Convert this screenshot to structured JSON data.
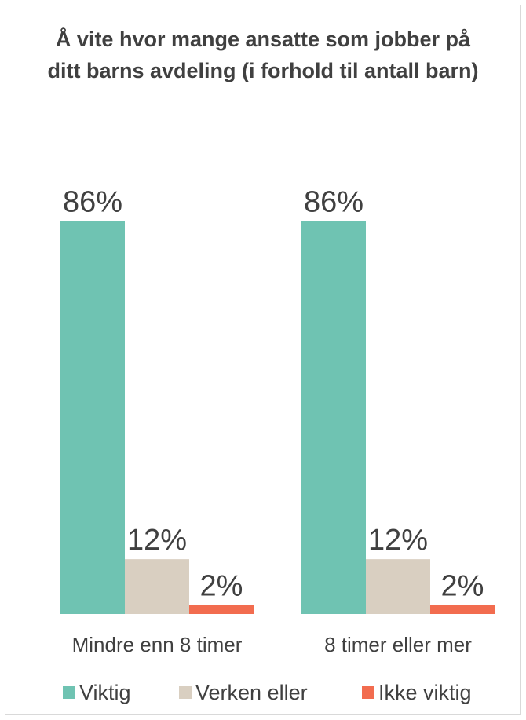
{
  "chart_data": {
    "type": "bar",
    "title": "Å vite hvor mange ansatte som jobber på ditt barns avdeling (i forhold til antall barn)",
    "categories": [
      "Mindre enn 8 timer",
      "8 timer eller mer"
    ],
    "series": [
      {
        "name": "Viktig",
        "values": [
          86,
          86
        ],
        "labels": [
          "86%",
          "86%"
        ],
        "color": "#6fc3b2"
      },
      {
        "name": "Verken eller",
        "values": [
          12,
          12
        ],
        "labels": [
          "12%",
          "12%"
        ],
        "color": "#d9cfc1"
      },
      {
        "name": "Ikke viktig",
        "values": [
          2,
          2
        ],
        "labels": [
          "2%",
          "2%"
        ],
        "color": "#f26c4f"
      }
    ],
    "ylim": [
      0,
      100
    ],
    "xlabel": "",
    "ylabel": "",
    "legend_position": "bottom",
    "grid": false
  }
}
